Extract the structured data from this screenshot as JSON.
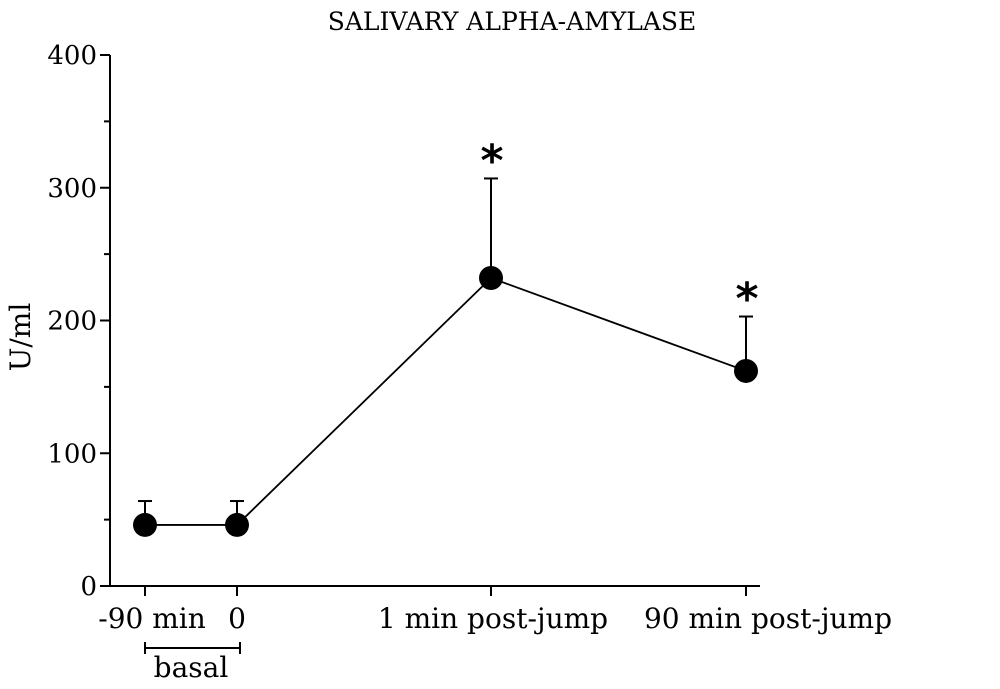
{
  "chart_data": {
    "type": "line",
    "title": "SALIVARY ALPHA-AMYLASE",
    "xlabel": "",
    "ylabel": "U/ml",
    "ylim": [
      0,
      400
    ],
    "y_ticks": [
      "0",
      "100",
      "200",
      "300",
      "400"
    ],
    "y_minor_ticks": [
      50,
      150,
      250,
      350
    ],
    "categories": [
      "-90 min",
      "0",
      "1 min post-jump",
      "90 min post-jump"
    ],
    "bracket_label": "basal",
    "series": [
      {
        "values": [
          46,
          46,
          232,
          162
        ],
        "error_upper": [
          64,
          64,
          307,
          203
        ],
        "significance": [
          "",
          "",
          "*",
          "*"
        ]
      }
    ],
    "grid": false,
    "legend": "none"
  }
}
